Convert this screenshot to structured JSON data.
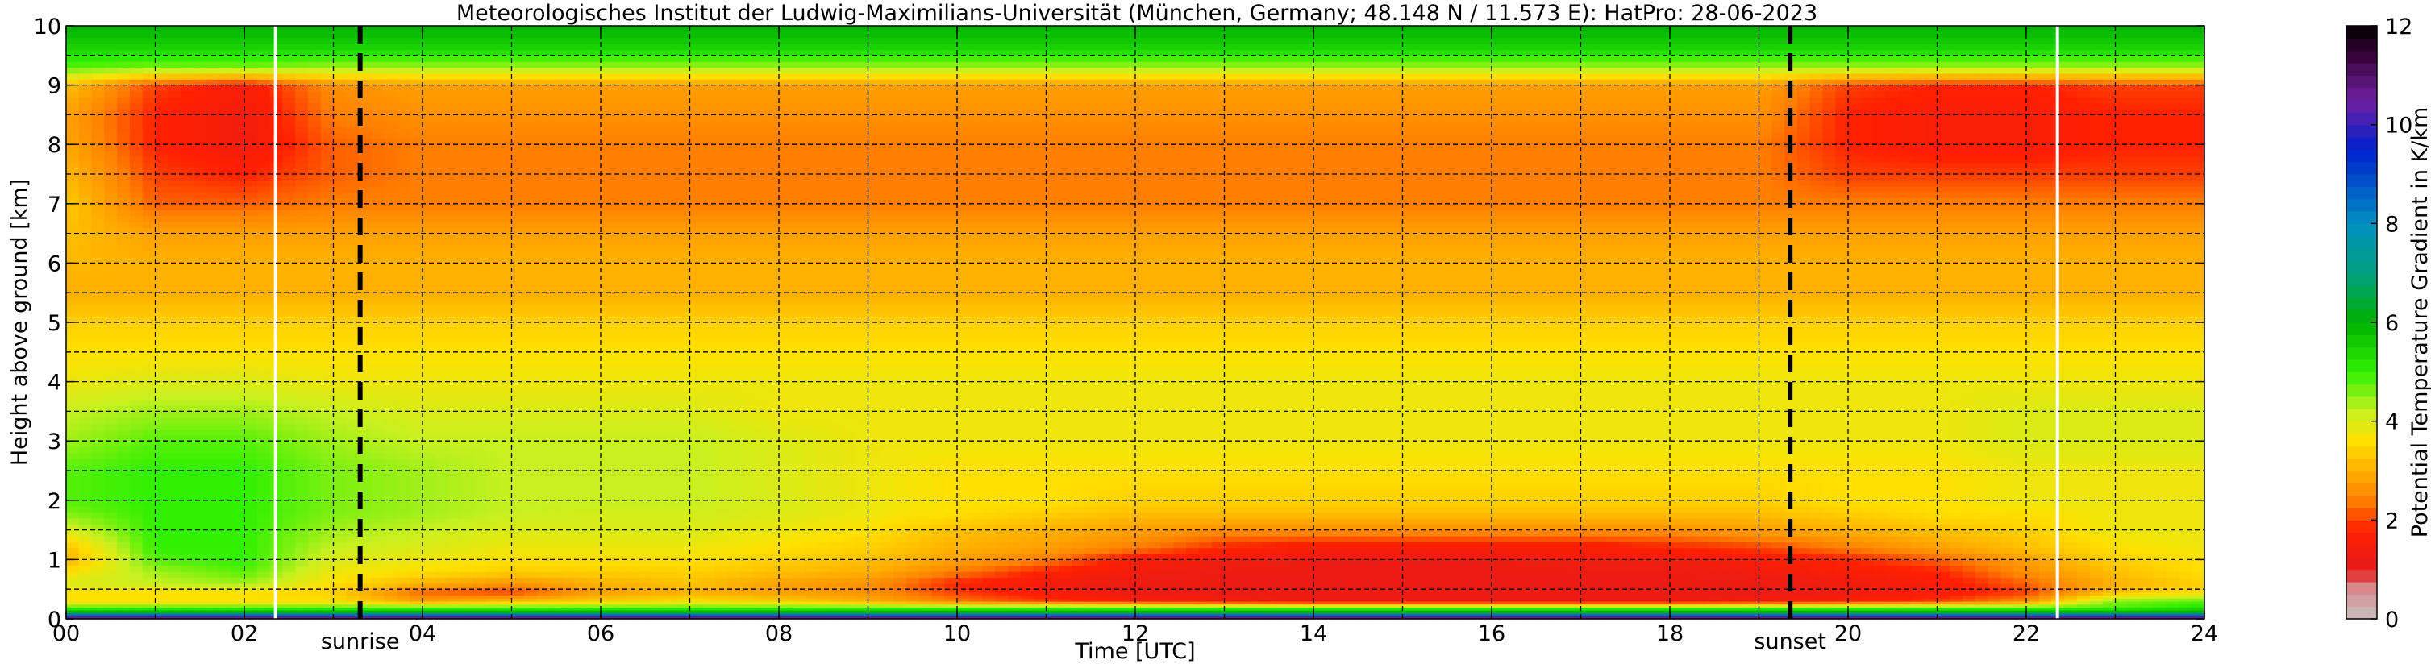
{
  "chart_data": {
    "type": "heatmap",
    "title": "Meteorologisches Institut der Ludwig-Maximilians-Universität (München, Germany; 48.148 N / 11.573 E):    HatPro: 28-06-2023",
    "xlabel": "Time [UTC]",
    "ylabel": "Height above ground [km]",
    "xlim": [
      0,
      24
    ],
    "ylim": [
      0,
      10
    ],
    "x_tick_labels": [
      "00",
      "02",
      "04",
      "06",
      "08",
      "10",
      "12",
      "14",
      "16",
      "18",
      "20",
      "22",
      "24"
    ],
    "y_tick_labels": [
      "0",
      "1",
      "2",
      "3",
      "4",
      "5",
      "6",
      "7",
      "8",
      "9",
      "10"
    ],
    "grid": true,
    "colorbar": {
      "label": "Potential Temperature Gradient in K/km",
      "range": [
        0,
        12
      ],
      "tick_labels": [
        "0",
        "2",
        "4",
        "6",
        "8",
        "10",
        "12"
      ],
      "stops": [
        {
          "value": 0.0,
          "color": "#c8c0c0"
        },
        {
          "value": 0.6,
          "color": "#d89090"
        },
        {
          "value": 1.0,
          "color": "#e61a1a"
        },
        {
          "value": 1.8,
          "color": "#ff2000"
        },
        {
          "value": 2.4,
          "color": "#ff8000"
        },
        {
          "value": 3.0,
          "color": "#ffb000"
        },
        {
          "value": 3.6,
          "color": "#ffe000"
        },
        {
          "value": 4.2,
          "color": "#c8f020"
        },
        {
          "value": 5.0,
          "color": "#30f000"
        },
        {
          "value": 6.0,
          "color": "#00b000"
        },
        {
          "value": 7.0,
          "color": "#00a080"
        },
        {
          "value": 8.0,
          "color": "#0090c0"
        },
        {
          "value": 9.5,
          "color": "#0020d0"
        },
        {
          "value": 10.5,
          "color": "#7020a0"
        },
        {
          "value": 11.5,
          "color": "#300030"
        },
        {
          "value": 12.0,
          "color": "#000000"
        }
      ]
    },
    "gradient_field": {
      "heights_km": [
        0.0,
        0.05,
        0.12,
        0.2,
        0.3,
        0.45,
        0.6,
        0.8,
        1.0,
        1.2,
        1.5,
        1.8,
        2.0,
        2.5,
        3.0,
        3.5,
        4.0,
        4.5,
        5.0,
        5.5,
        6.0,
        6.5,
        7.0,
        7.5,
        8.0,
        8.5,
        9.0,
        9.3,
        9.6,
        10.0
      ],
      "times_h": [
        0,
        1,
        2,
        3,
        4,
        5,
        6,
        7,
        8,
        9,
        10,
        11,
        12,
        13,
        14,
        15,
        16,
        17,
        18,
        19,
        20,
        21,
        22,
        23,
        24
      ],
      "values": [
        [
          11.5,
          9.8,
          6.0,
          4.8,
          3.6,
          3.6,
          4.0,
          3.6,
          3.0,
          3.2,
          4.0,
          4.6,
          4.8,
          4.8,
          4.4,
          4.2,
          3.8,
          3.6,
          3.4,
          3.0,
          3.1,
          3.2,
          3.3,
          3.1,
          2.9,
          2.8,
          3.2,
          4.8,
          5.4,
          6.0
        ],
        [
          11.5,
          9.8,
          6.0,
          4.8,
          3.6,
          3.6,
          4.2,
          4.4,
          4.8,
          5.0,
          5.0,
          5.0,
          5.0,
          5.0,
          4.8,
          4.4,
          4.0,
          3.6,
          3.4,
          3.0,
          3.0,
          2.8,
          2.2,
          2.0,
          1.8,
          1.8,
          2.0,
          4.6,
          5.4,
          6.0
        ],
        [
          11.5,
          9.8,
          6.0,
          4.8,
          3.6,
          3.6,
          4.4,
          4.8,
          5.0,
          5.0,
          5.0,
          5.0,
          5.0,
          5.0,
          4.8,
          4.4,
          4.0,
          3.6,
          3.4,
          3.0,
          3.0,
          2.8,
          2.2,
          1.8,
          1.4,
          1.4,
          1.6,
          4.6,
          5.4,
          6.0
        ],
        [
          11.5,
          9.8,
          6.0,
          4.8,
          3.6,
          3.4,
          3.6,
          3.8,
          4.0,
          4.2,
          4.4,
          4.6,
          4.6,
          4.6,
          4.4,
          4.2,
          3.8,
          3.6,
          3.4,
          3.0,
          3.0,
          2.8,
          2.4,
          2.2,
          2.2,
          2.4,
          2.6,
          4.4,
          5.4,
          6.0
        ],
        [
          11.5,
          9.8,
          6.0,
          4.8,
          2.8,
          2.2,
          3.0,
          3.6,
          3.8,
          4.0,
          4.2,
          4.4,
          4.4,
          4.4,
          4.2,
          4.0,
          3.8,
          3.6,
          3.4,
          3.0,
          3.0,
          2.8,
          2.4,
          2.4,
          2.4,
          2.6,
          2.8,
          4.4,
          5.4,
          6.0
        ],
        [
          11.5,
          9.8,
          6.0,
          4.8,
          3.2,
          2.0,
          2.6,
          3.4,
          3.6,
          3.8,
          4.0,
          4.2,
          4.2,
          4.2,
          4.2,
          4.0,
          3.8,
          3.6,
          3.4,
          3.0,
          3.0,
          2.8,
          2.4,
          2.4,
          2.4,
          2.6,
          2.8,
          4.4,
          5.4,
          6.0
        ],
        [
          11.5,
          9.8,
          6.0,
          4.8,
          3.4,
          2.8,
          3.0,
          3.4,
          3.6,
          3.8,
          4.0,
          4.1,
          4.2,
          4.2,
          4.2,
          4.0,
          3.8,
          3.6,
          3.4,
          3.0,
          3.0,
          2.8,
          2.4,
          2.4,
          2.4,
          2.6,
          2.8,
          4.4,
          5.4,
          6.0
        ],
        [
          11.5,
          9.8,
          6.0,
          4.8,
          3.6,
          3.0,
          3.2,
          3.4,
          3.6,
          3.8,
          4.0,
          4.1,
          4.2,
          4.2,
          4.2,
          4.0,
          3.8,
          3.6,
          3.4,
          3.0,
          3.0,
          2.8,
          2.4,
          2.4,
          2.4,
          2.6,
          2.8,
          4.4,
          5.4,
          6.0
        ],
        [
          11.5,
          9.8,
          6.0,
          4.8,
          3.4,
          2.8,
          2.8,
          3.2,
          3.4,
          3.6,
          3.8,
          4.0,
          4.0,
          4.0,
          4.0,
          3.8,
          3.8,
          3.6,
          3.4,
          3.0,
          3.0,
          2.8,
          2.4,
          2.4,
          2.4,
          2.6,
          2.8,
          4.4,
          5.4,
          6.0
        ],
        [
          11.5,
          9.8,
          6.0,
          4.8,
          3.0,
          2.6,
          2.6,
          3.0,
          3.2,
          3.4,
          3.6,
          3.8,
          3.8,
          3.8,
          3.8,
          3.8,
          3.8,
          3.6,
          3.4,
          3.0,
          3.0,
          2.8,
          2.4,
          2.4,
          2.4,
          2.6,
          2.8,
          4.4,
          5.4,
          6.0
        ],
        [
          11.5,
          9.8,
          6.0,
          4.8,
          2.4,
          2.0,
          1.8,
          2.4,
          2.8,
          3.0,
          3.2,
          3.6,
          3.6,
          3.6,
          3.8,
          3.8,
          3.8,
          3.6,
          3.4,
          3.0,
          3.0,
          2.8,
          2.4,
          2.4,
          2.4,
          2.6,
          2.8,
          4.4,
          5.4,
          6.0
        ],
        [
          11.5,
          9.8,
          6.0,
          4.8,
          2.0,
          1.6,
          1.4,
          1.8,
          2.4,
          2.8,
          3.0,
          3.4,
          3.6,
          3.6,
          3.8,
          3.8,
          3.8,
          3.6,
          3.4,
          3.0,
          3.0,
          2.8,
          2.4,
          2.4,
          2.4,
          2.6,
          2.8,
          4.4,
          5.4,
          6.0
        ],
        [
          11.5,
          9.8,
          6.0,
          4.8,
          1.6,
          1.2,
          1.2,
          1.4,
          1.6,
          2.4,
          2.8,
          3.2,
          3.4,
          3.6,
          3.8,
          3.8,
          3.8,
          3.6,
          3.4,
          3.0,
          3.0,
          2.8,
          2.4,
          2.4,
          2.4,
          2.6,
          2.8,
          4.4,
          5.4,
          6.0
        ],
        [
          11.5,
          9.8,
          6.0,
          4.8,
          1.4,
          1.2,
          1.2,
          1.2,
          1.4,
          1.8,
          2.6,
          3.2,
          3.4,
          3.6,
          3.8,
          3.8,
          3.8,
          3.6,
          3.4,
          3.0,
          3.0,
          2.8,
          2.4,
          2.4,
          2.4,
          2.6,
          2.8,
          4.4,
          5.4,
          6.0
        ],
        [
          11.5,
          9.8,
          6.0,
          4.8,
          1.2,
          1.2,
          1.2,
          1.2,
          1.2,
          1.6,
          2.6,
          3.2,
          3.4,
          3.6,
          3.8,
          3.8,
          3.8,
          3.6,
          3.4,
          3.0,
          3.0,
          2.8,
          2.4,
          2.4,
          2.4,
          2.6,
          2.8,
          4.4,
          5.4,
          6.0
        ],
        [
          11.5,
          9.8,
          6.0,
          4.8,
          1.2,
          1.2,
          1.2,
          1.2,
          1.2,
          1.6,
          2.6,
          3.2,
          3.4,
          3.6,
          3.8,
          3.8,
          3.8,
          3.6,
          3.4,
          3.0,
          3.0,
          2.8,
          2.4,
          2.4,
          2.4,
          2.6,
          2.8,
          4.4,
          5.4,
          6.0
        ],
        [
          11.5,
          9.8,
          6.0,
          4.8,
          1.2,
          1.2,
          1.2,
          1.2,
          1.2,
          1.6,
          2.6,
          3.2,
          3.4,
          3.6,
          3.8,
          3.8,
          3.8,
          3.6,
          3.4,
          3.0,
          3.0,
          2.8,
          2.4,
          2.4,
          2.4,
          2.6,
          2.8,
          4.4,
          5.4,
          6.0
        ],
        [
          11.5,
          9.8,
          6.0,
          4.8,
          1.2,
          1.2,
          1.2,
          1.2,
          1.4,
          1.6,
          2.6,
          3.2,
          3.4,
          3.6,
          3.8,
          3.8,
          3.8,
          3.6,
          3.4,
          3.0,
          3.0,
          2.8,
          2.4,
          2.4,
          2.4,
          2.6,
          2.8,
          4.4,
          5.4,
          6.0
        ],
        [
          11.5,
          9.8,
          6.0,
          4.8,
          1.2,
          1.2,
          1.2,
          1.2,
          1.4,
          1.8,
          2.6,
          3.2,
          3.4,
          3.6,
          3.8,
          3.8,
          3.8,
          3.6,
          3.4,
          3.0,
          3.0,
          2.8,
          2.4,
          2.4,
          2.4,
          2.6,
          2.8,
          4.4,
          5.4,
          6.0
        ],
        [
          11.5,
          9.8,
          6.0,
          4.8,
          1.4,
          1.2,
          1.2,
          1.4,
          1.6,
          2.0,
          2.8,
          3.2,
          3.4,
          3.6,
          3.8,
          3.8,
          3.8,
          3.6,
          3.4,
          3.0,
          3.0,
          2.8,
          2.4,
          2.4,
          2.4,
          2.6,
          2.8,
          4.4,
          5.4,
          6.0
        ],
        [
          11.5,
          9.8,
          6.0,
          4.8,
          1.6,
          1.4,
          1.4,
          1.6,
          1.8,
          2.4,
          3.0,
          3.4,
          3.6,
          3.6,
          3.8,
          3.8,
          3.8,
          3.6,
          3.4,
          3.0,
          3.0,
          2.8,
          2.4,
          2.0,
          1.8,
          1.8,
          2.0,
          4.4,
          5.4,
          6.0
        ],
        [
          11.5,
          9.8,
          6.0,
          4.8,
          2.0,
          1.6,
          1.6,
          1.8,
          2.2,
          2.8,
          3.2,
          3.6,
          3.6,
          3.6,
          3.8,
          3.8,
          3.8,
          3.6,
          3.4,
          3.0,
          3.0,
          2.8,
          2.4,
          2.0,
          1.6,
          1.6,
          1.8,
          4.4,
          5.4,
          6.0
        ],
        [
          11.5,
          9.8,
          6.0,
          4.8,
          2.6,
          2.0,
          2.2,
          2.6,
          2.8,
          3.2,
          3.4,
          3.6,
          3.8,
          3.8,
          4.0,
          4.0,
          3.8,
          3.6,
          3.4,
          3.0,
          3.0,
          2.8,
          2.4,
          2.0,
          1.6,
          1.6,
          1.8,
          4.4,
          5.4,
          6.0
        ],
        [
          11.5,
          9.8,
          6.0,
          4.8,
          4.6,
          3.2,
          3.0,
          3.2,
          3.4,
          3.6,
          3.8,
          3.8,
          3.8,
          3.8,
          4.0,
          4.0,
          3.8,
          3.6,
          3.4,
          3.0,
          3.0,
          2.8,
          2.4,
          2.0,
          1.8,
          1.8,
          2.0,
          4.4,
          5.4,
          6.0
        ],
        [
          11.5,
          9.8,
          6.0,
          5.2,
          4.8,
          3.6,
          3.4,
          3.6,
          3.6,
          3.8,
          3.8,
          3.8,
          3.8,
          3.8,
          4.0,
          4.0,
          3.8,
          3.6,
          3.4,
          3.0,
          3.0,
          2.8,
          2.4,
          2.0,
          1.8,
          1.8,
          2.0,
          4.4,
          5.4,
          6.0
        ]
      ]
    },
    "gaps_h": [
      2.35,
      22.35
    ],
    "events": [
      {
        "label": "sunrise",
        "time_h": 3.3
      },
      {
        "label": "sunset",
        "time_h": 19.35
      }
    ]
  }
}
